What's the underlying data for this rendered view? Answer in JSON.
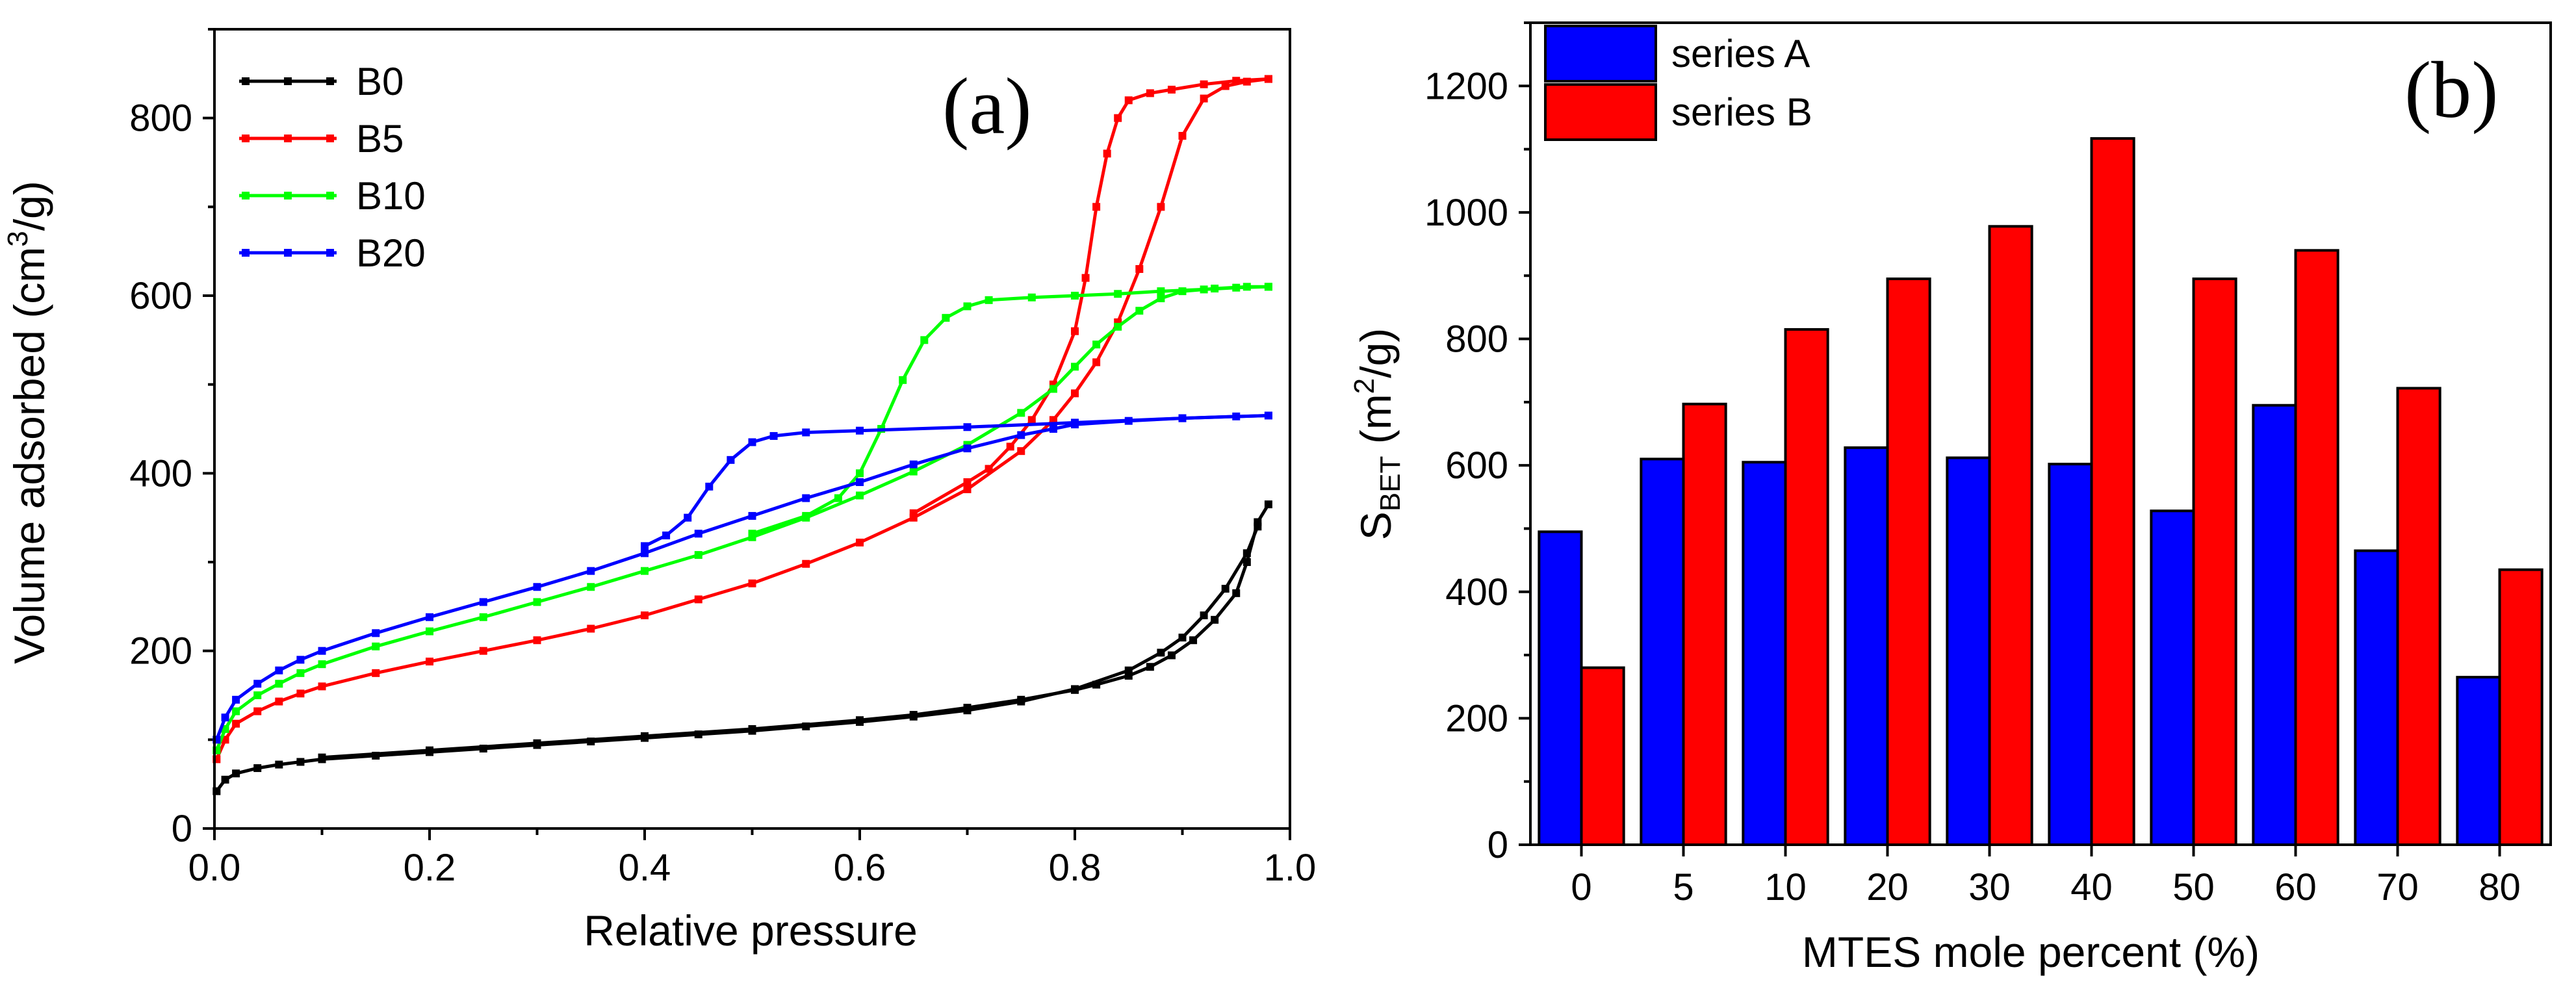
{
  "chart_data": [
    {
      "panel": "(a)",
      "type": "line",
      "xlabel": "Relative pressure",
      "ylabel": "Volume adsorbed (cm3/g)",
      "ylabel_parts": {
        "pre": "Volume adsorbed (cm",
        "sup": "3",
        "post": "/g)"
      },
      "xlim": [
        0,
        1.0
      ],
      "ylim": [
        0,
        900
      ],
      "xticks": [
        0.0,
        0.2,
        0.4,
        0.6,
        0.8,
        1.0
      ],
      "xtick_labels": [
        "0.0",
        "0.2",
        "0.4",
        "0.6",
        "0.8",
        "1.0"
      ],
      "yticks": [
        0,
        200,
        400,
        600,
        800
      ],
      "ytick_labels": [
        "0",
        "200",
        "400",
        "600",
        "800"
      ],
      "legend_position": "top-left",
      "grid": false,
      "series": [
        {
          "name": "B0",
          "color": "#000000",
          "adsorption": [
            [
              0.002,
              42
            ],
            [
              0.01,
              55
            ],
            [
              0.02,
              62
            ],
            [
              0.04,
              68
            ],
            [
              0.06,
              72
            ],
            [
              0.08,
              75
            ],
            [
              0.1,
              78
            ],
            [
              0.15,
              82
            ],
            [
              0.2,
              86
            ],
            [
              0.25,
              90
            ],
            [
              0.3,
              94
            ],
            [
              0.35,
              98
            ],
            [
              0.4,
              102
            ],
            [
              0.45,
              106
            ],
            [
              0.5,
              110
            ],
            [
              0.55,
              115
            ],
            [
              0.6,
              120
            ],
            [
              0.65,
              126
            ],
            [
              0.7,
              133
            ],
            [
              0.75,
              143
            ],
            [
              0.8,
              157
            ],
            [
              0.85,
              178
            ],
            [
              0.88,
              198
            ],
            [
              0.9,
              215
            ],
            [
              0.92,
              240
            ],
            [
              0.94,
              270
            ],
            [
              0.96,
              310
            ],
            [
              0.97,
              340
            ]
          ],
          "desorption": [
            [
              0.98,
              365
            ],
            [
              0.97,
              345
            ],
            [
              0.96,
              300
            ],
            [
              0.95,
              265
            ],
            [
              0.93,
              235
            ],
            [
              0.91,
              212
            ],
            [
              0.89,
              195
            ],
            [
              0.87,
              182
            ],
            [
              0.85,
              172
            ],
            [
              0.82,
              162
            ],
            [
              0.8,
              156
            ],
            [
              0.75,
              145
            ],
            [
              0.7,
              136
            ],
            [
              0.65,
              128
            ],
            [
              0.6,
              122
            ],
            [
              0.5,
              112
            ],
            [
              0.4,
              104
            ],
            [
              0.3,
              96
            ],
            [
              0.2,
              88
            ],
            [
              0.1,
              80
            ]
          ]
        },
        {
          "name": "B5",
          "color": "#ff0000",
          "adsorption": [
            [
              0.002,
              78
            ],
            [
              0.01,
              100
            ],
            [
              0.02,
              118
            ],
            [
              0.04,
              132
            ],
            [
              0.06,
              143
            ],
            [
              0.08,
              152
            ],
            [
              0.1,
              160
            ],
            [
              0.15,
              175
            ],
            [
              0.2,
              188
            ],
            [
              0.25,
              200
            ],
            [
              0.3,
              212
            ],
            [
              0.35,
              225
            ],
            [
              0.4,
              240
            ],
            [
              0.45,
              258
            ],
            [
              0.5,
              276
            ],
            [
              0.55,
              298
            ],
            [
              0.6,
              322
            ],
            [
              0.65,
              350
            ],
            [
              0.7,
              382
            ],
            [
              0.75,
              425
            ],
            [
              0.78,
              460
            ],
            [
              0.8,
              490
            ],
            [
              0.82,
              525
            ],
            [
              0.84,
              570
            ],
            [
              0.86,
              630
            ],
            [
              0.88,
              700
            ],
            [
              0.9,
              780
            ],
            [
              0.92,
              822
            ],
            [
              0.94,
              836
            ],
            [
              0.96,
              841
            ],
            [
              0.98,
              844
            ]
          ],
          "desorption": [
            [
              0.98,
              844
            ],
            [
              0.95,
              842
            ],
            [
              0.92,
              838
            ],
            [
              0.89,
              832
            ],
            [
              0.87,
              828
            ],
            [
              0.85,
              820
            ],
            [
              0.84,
              800
            ],
            [
              0.83,
              760
            ],
            [
              0.82,
              700
            ],
            [
              0.81,
              620
            ],
            [
              0.8,
              560
            ],
            [
              0.78,
              500
            ],
            [
              0.76,
              460
            ],
            [
              0.74,
              430
            ],
            [
              0.72,
              405
            ],
            [
              0.7,
              390
            ],
            [
              0.65,
              355
            ]
          ]
        },
        {
          "name": "B10",
          "color": "#00ff00",
          "adsorption": [
            [
              0.002,
              88
            ],
            [
              0.01,
              112
            ],
            [
              0.02,
              132
            ],
            [
              0.04,
              150
            ],
            [
              0.06,
              163
            ],
            [
              0.08,
              175
            ],
            [
              0.1,
              185
            ],
            [
              0.15,
              205
            ],
            [
              0.2,
              222
            ],
            [
              0.25,
              238
            ],
            [
              0.3,
              255
            ],
            [
              0.35,
              272
            ],
            [
              0.4,
              290
            ],
            [
              0.45,
              308
            ],
            [
              0.5,
              328
            ],
            [
              0.55,
              350
            ],
            [
              0.6,
              375
            ],
            [
              0.65,
              402
            ],
            [
              0.7,
              432
            ],
            [
              0.75,
              468
            ],
            [
              0.78,
              495
            ],
            [
              0.8,
              520
            ],
            [
              0.82,
              545
            ],
            [
              0.84,
              565
            ],
            [
              0.86,
              583
            ],
            [
              0.88,
              597
            ],
            [
              0.9,
              605
            ],
            [
              0.93,
              608
            ],
            [
              0.96,
              610
            ],
            [
              0.98,
              610
            ]
          ],
          "desorption": [
            [
              0.98,
              610
            ],
            [
              0.95,
              609
            ],
            [
              0.92,
              607
            ],
            [
              0.88,
              605
            ],
            [
              0.84,
              602
            ],
            [
              0.8,
              600
            ],
            [
              0.76,
              598
            ],
            [
              0.72,
              595
            ],
            [
              0.7,
              588
            ],
            [
              0.68,
              575
            ],
            [
              0.66,
              550
            ],
            [
              0.64,
              505
            ],
            [
              0.62,
              450
            ],
            [
              0.6,
              400
            ],
            [
              0.58,
              372
            ],
            [
              0.55,
              352
            ],
            [
              0.5,
              332
            ]
          ]
        },
        {
          "name": "B20",
          "color": "#0000ff",
          "adsorption": [
            [
              0.002,
              100
            ],
            [
              0.01,
              125
            ],
            [
              0.02,
              145
            ],
            [
              0.04,
              163
            ],
            [
              0.06,
              178
            ],
            [
              0.08,
              190
            ],
            [
              0.1,
              200
            ],
            [
              0.15,
              220
            ],
            [
              0.2,
              238
            ],
            [
              0.25,
              255
            ],
            [
              0.3,
              272
            ],
            [
              0.35,
              290
            ],
            [
              0.4,
              310
            ],
            [
              0.45,
              332
            ],
            [
              0.5,
              352
            ],
            [
              0.55,
              372
            ],
            [
              0.6,
              390
            ],
            [
              0.65,
              410
            ],
            [
              0.7,
              428
            ],
            [
              0.75,
              443
            ],
            [
              0.78,
              450
            ],
            [
              0.8,
              455
            ],
            [
              0.85,
              459
            ],
            [
              0.9,
              462
            ],
            [
              0.95,
              464
            ],
            [
              0.98,
              465
            ]
          ],
          "desorption": [
            [
              0.98,
              465
            ],
            [
              0.9,
              462
            ],
            [
              0.8,
              457
            ],
            [
              0.7,
              452
            ],
            [
              0.6,
              448
            ],
            [
              0.55,
              446
            ],
            [
              0.52,
              442
            ],
            [
              0.5,
              435
            ],
            [
              0.48,
              415
            ],
            [
              0.46,
              385
            ],
            [
              0.44,
              350
            ],
            [
              0.42,
              330
            ],
            [
              0.4,
              318
            ]
          ]
        }
      ]
    },
    {
      "panel": "(b)",
      "type": "bar",
      "xlabel": "MTES mole percent (%)",
      "ylabel": "SBET (m2/g)",
      "ylabel_parts": {
        "pre": "S",
        "sub": "BET",
        "mid": " (m",
        "sup": "2",
        "post": "/g)"
      },
      "categories": [
        "0",
        "5",
        "10",
        "20",
        "30",
        "40",
        "50",
        "60",
        "70",
        "80"
      ],
      "ylim": [
        0,
        1300
      ],
      "yticks": [
        0,
        200,
        400,
        600,
        800,
        1000,
        1200
      ],
      "ytick_labels": [
        "0",
        "200",
        "400",
        "600",
        "800",
        "1000",
        "1200"
      ],
      "legend_position": "top-left",
      "grid": false,
      "series": [
        {
          "name": "series A",
          "color": "#0000ff",
          "values": [
            495,
            610,
            605,
            628,
            612,
            602,
            528,
            695,
            465,
            265
          ]
        },
        {
          "name": "series B",
          "color": "#ff0000",
          "values": [
            280,
            697,
            815,
            895,
            978,
            1117,
            895,
            940,
            722,
            435
          ]
        }
      ]
    }
  ]
}
